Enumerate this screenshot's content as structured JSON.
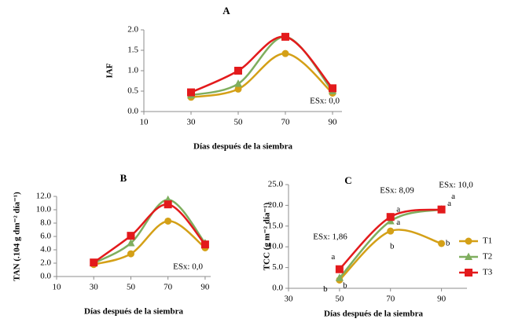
{
  "chart_data": [
    {
      "type": "line",
      "title": "A",
      "y_label": "IAF",
      "x_label": "Días después de la siembra",
      "x": [
        30,
        50,
        70,
        90
      ],
      "xlim": [
        10,
        94
      ],
      "xticks": [
        10,
        30,
        50,
        70,
        90
      ],
      "ylim": [
        0,
        2
      ],
      "yticks": [
        {
          "value": 0,
          "label": "0.0"
        },
        0.5,
        {
          "value": 1,
          "label": "1.0"
        },
        1.5,
        {
          "value": 2,
          "label": "2.0"
        }
      ],
      "annotations": [
        "ESx: 0,0"
      ],
      "series": [
        {
          "color": "#d4a017",
          "marker": "circle",
          "values": [
            0.35,
            0.55,
            1.42,
            0.45
          ]
        },
        {
          "color": "#7fae5e",
          "marker": "triangle",
          "values": [
            0.4,
            0.68,
            1.83,
            0.5
          ]
        },
        {
          "color": "#e31a1c",
          "marker": "square",
          "values": [
            0.47,
            1.0,
            1.83,
            0.57
          ]
        }
      ]
    },
    {
      "type": "line",
      "title": "B",
      "y_label": "TAN (.104 g dm⁻² día⁻¹)",
      "x_label": "Días después de la siembra",
      "x": [
        30,
        50,
        70,
        90
      ],
      "xlim": [
        10,
        93
      ],
      "xticks": [
        10,
        30,
        50,
        70,
        90
      ],
      "ylim": [
        0,
        12
      ],
      "yticks": [
        {
          "value": 0,
          "label": "0.0"
        },
        {
          "value": 2,
          "label": "2.0"
        },
        {
          "value": 4,
          "label": "4.0"
        },
        {
          "value": 6,
          "label": "6.0"
        },
        {
          "value": 8,
          "label": "8.0"
        },
        {
          "value": 10,
          "label": "10.0"
        },
        {
          "value": 12,
          "label": "12.0"
        }
      ],
      "annotations": [
        "ESx: 0,0"
      ],
      "series": [
        {
          "color": "#d4a017",
          "marker": "circle",
          "values": [
            1.8,
            3.4,
            8.3,
            4.3
          ]
        },
        {
          "color": "#7fae5e",
          "marker": "triangle",
          "values": [
            2.0,
            5.0,
            11.5,
            5.0
          ]
        },
        {
          "color": "#e31a1c",
          "marker": "square",
          "values": [
            2.1,
            6.1,
            10.8,
            4.8
          ]
        }
      ]
    },
    {
      "type": "line",
      "title": "C",
      "y_label": "TCC (g m⁻² día⁻¹)",
      "x_label": "Días después de la siembra",
      "x": [
        50,
        70,
        90
      ],
      "xlim": [
        30,
        100
      ],
      "xticks": [
        30,
        50,
        70,
        90
      ],
      "ylim": [
        0,
        25
      ],
      "yticks": [
        {
          "value": 0,
          "label": "0.0"
        },
        {
          "value": 5,
          "label": "5.0"
        },
        {
          "value": 10,
          "label": "10.0"
        },
        {
          "value": 15,
          "label": "15.0"
        },
        {
          "value": 20,
          "label": "20.0"
        },
        {
          "value": 25,
          "label": "25.0"
        }
      ],
      "annotations": [
        "ESx: 1,86",
        "ESx: 8,09",
        "ESx: 10,0"
      ],
      "legend": "right",
      "series": [
        {
          "name": "T1",
          "color": "#d4a017",
          "marker": "circle",
          "values": [
            2.0,
            13.8,
            10.8
          ],
          "letters": [
            "b",
            "b",
            "b"
          ]
        },
        {
          "name": "T2",
          "color": "#7fae5e",
          "marker": "triangle",
          "values": [
            2.5,
            16.2,
            19.0
          ],
          "letters": [
            "b",
            "a",
            "a"
          ]
        },
        {
          "name": "T3",
          "color": "#e31a1c",
          "marker": "square",
          "values": [
            4.6,
            17.2,
            19.0
          ],
          "letters": [
            "a",
            "a",
            "a"
          ]
        }
      ]
    }
  ]
}
